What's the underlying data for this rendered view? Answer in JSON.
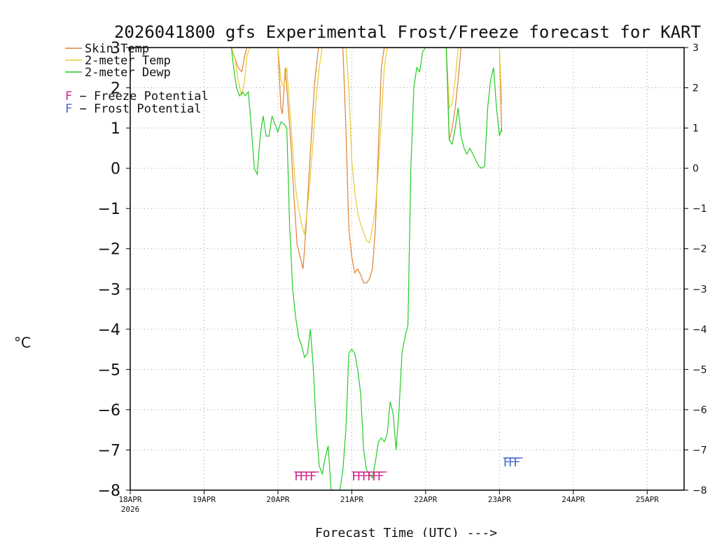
{
  "chart_data": {
    "type": "line",
    "title": "2026041800 gfs Experimental Frost/Freeze forecast for KART",
    "xlabel": "Forecast Time (UTC) --->",
    "ylabel": "°C",
    "ylim": [
      -8,
      3
    ],
    "xlim": [
      0,
      7.5
    ],
    "y_ticks": [
      -8,
      -7,
      -6,
      -5,
      -4,
      -3,
      -2,
      -1,
      0,
      1,
      2,
      3
    ],
    "y_tick_labels": [
      "−8",
      "−7",
      "−6",
      "−5",
      "−4",
      "−3",
      "−2",
      "−1",
      "0",
      "1",
      "2",
      "3"
    ],
    "x_ticks": [
      0,
      1,
      2,
      3,
      4,
      5,
      6,
      7
    ],
    "x_tick_labels": [
      "18APR",
      "19APR",
      "20APR",
      "21APR",
      "22APR",
      "23APR",
      "24APR",
      "25APR"
    ],
    "x_sub_label": "2026",
    "grid": true,
    "legend": [
      {
        "name": "Skin Temp",
        "color": "#e08030"
      },
      {
        "name": "2-meter Temp",
        "color": "#e6cc30"
      },
      {
        "name": "2-meter Dewp",
        "color": "#22cc22"
      }
    ],
    "legend_markers": [
      {
        "symbol": "F",
        "text": " − Freeze Potential",
        "color": "#cc2288"
      },
      {
        "symbol": "F",
        "text": " − Frost Potential",
        "color": "#4466cc"
      }
    ],
    "series": [
      {
        "name": "Skin Temp",
        "color": "#e08030",
        "x": [
          1.37,
          1.46,
          1.51,
          1.55,
          1.58,
          1.62,
          1.66,
          1.7,
          1.74,
          1.78,
          1.82,
          1.86,
          1.9,
          1.95,
          2.0,
          2.04,
          2.06,
          2.1,
          2.14,
          2.18,
          2.22,
          2.26,
          2.3,
          2.34,
          2.38,
          2.42,
          2.46,
          2.5,
          2.55,
          2.6,
          2.64,
          2.66,
          2.68,
          2.88,
          2.92,
          2.96,
          3.0,
          3.04,
          3.08,
          3.12,
          3.16,
          3.2,
          3.24,
          3.28,
          3.32,
          3.36,
          3.4,
          3.44,
          3.48,
          3.52,
          3.56,
          3.6,
          3.64,
          3.68,
          3.72,
          4.24,
          4.28,
          4.32,
          4.36,
          4.4,
          4.44,
          4.48,
          4.52,
          4.56,
          4.6,
          4.64,
          4.68,
          4.72,
          4.76,
          4.8,
          4.84,
          4.88,
          4.92,
          4.96,
          5.0,
          5.03
        ],
        "y": [
          3.0,
          2.5,
          2.4,
          2.8,
          3.0,
          3.0,
          3.0,
          3.0,
          3.0,
          3.0,
          3.0,
          3.0,
          3.0,
          3.0,
          3.0,
          1.5,
          1.35,
          2.5,
          1.5,
          0.5,
          -0.8,
          -1.9,
          -2.2,
          -2.5,
          -1.5,
          -0.2,
          1.0,
          2.2,
          3.0,
          3.0,
          3.0,
          3.0,
          3.0,
          3.0,
          1.0,
          -1.5,
          -2.2,
          -2.6,
          -2.5,
          -2.65,
          -2.85,
          -2.85,
          -2.75,
          -2.5,
          -1.5,
          0.5,
          2.5,
          3.0,
          3.0,
          3.0,
          3.0,
          3.0,
          3.0,
          3.0,
          3.0,
          3.0,
          3.0,
          0.7,
          1.0,
          1.5,
          2.2,
          3.0,
          3.0,
          3.0,
          3.0,
          3.0,
          3.0,
          3.0,
          3.0,
          3.0,
          3.0,
          3.0,
          3.0,
          3.0,
          3.0,
          0.9
        ]
      },
      {
        "name": "2-meter Temp",
        "color": "#e6cc30",
        "x": [
          1.37,
          1.42,
          1.46,
          1.51,
          1.55,
          1.58,
          1.62,
          1.66,
          1.7,
          1.74,
          1.78,
          1.82,
          1.86,
          1.9,
          1.95,
          2.0,
          2.04,
          2.08,
          2.12,
          2.16,
          2.2,
          2.24,
          2.28,
          2.32,
          2.36,
          2.4,
          2.44,
          2.48,
          2.52,
          2.56,
          2.6,
          2.66,
          2.92,
          2.96,
          3.0,
          3.04,
          3.08,
          3.12,
          3.16,
          3.2,
          3.24,
          3.28,
          3.32,
          3.36,
          3.4,
          3.44,
          3.48,
          3.52,
          3.6,
          3.64,
          3.68,
          3.72,
          4.24,
          4.28,
          4.32,
          4.36,
          4.4,
          4.44,
          4.48,
          4.52,
          4.56,
          4.6,
          4.64,
          4.68,
          4.72,
          4.76,
          4.8,
          4.84,
          4.88,
          4.92,
          4.96,
          5.0,
          5.03
        ],
        "y": [
          3.0,
          2.7,
          2.2,
          1.8,
          2.2,
          2.8,
          3.0,
          3.0,
          3.0,
          3.0,
          3.0,
          3.0,
          3.0,
          3.0,
          3.0,
          3.0,
          2.2,
          2.0,
          2.5,
          1.5,
          0.5,
          -0.5,
          -1.0,
          -1.4,
          -1.65,
          -1.0,
          -0.2,
          0.8,
          1.8,
          2.5,
          3.0,
          3.0,
          3.0,
          2.0,
          0.2,
          -0.6,
          -1.1,
          -1.4,
          -1.6,
          -1.8,
          -1.85,
          -1.5,
          -1.0,
          0.0,
          1.2,
          2.5,
          3.0,
          3.0,
          3.0,
          3.0,
          3.0,
          3.0,
          3.0,
          3.0,
          1.5,
          1.6,
          2.2,
          3.0,
          3.0,
          3.0,
          3.0,
          3.0,
          3.0,
          3.0,
          3.0,
          3.0,
          3.0,
          3.0,
          3.0,
          3.0,
          3.0,
          3.0,
          1.6
        ]
      },
      {
        "name": "2-meter Dewp",
        "color": "#22cc22",
        "x": [
          1.37,
          1.4,
          1.44,
          1.48,
          1.52,
          1.56,
          1.6,
          1.64,
          1.68,
          1.72,
          1.76,
          1.8,
          1.84,
          1.88,
          1.92,
          1.96,
          2.0,
          2.04,
          2.08,
          2.12,
          2.16,
          2.2,
          2.24,
          2.28,
          2.32,
          2.36,
          2.4,
          2.44,
          2.48,
          2.52,
          2.56,
          2.6,
          2.64,
          2.68,
          2.72,
          2.76,
          2.8,
          2.84,
          2.88,
          2.92,
          2.96,
          3.0,
          3.04,
          3.08,
          3.12,
          3.16,
          3.2,
          3.24,
          3.28,
          3.32,
          3.36,
          3.4,
          3.44,
          3.48,
          3.52,
          3.56,
          3.6,
          3.64,
          3.68,
          3.72,
          3.76,
          3.8,
          3.84,
          3.88,
          3.92,
          3.96,
          4.0,
          4.04,
          4.24,
          4.28,
          4.32,
          4.36,
          4.4,
          4.44,
          4.48,
          4.52,
          4.56,
          4.6,
          4.64,
          4.68,
          4.72,
          4.76,
          4.8,
          4.84,
          4.88,
          4.92,
          4.96,
          5.0,
          5.03
        ],
        "y": [
          3.0,
          2.5,
          2.0,
          1.8,
          1.9,
          1.8,
          1.9,
          1.0,
          0.0,
          -0.15,
          0.8,
          1.3,
          0.8,
          0.8,
          1.3,
          1.1,
          0.9,
          1.15,
          1.1,
          1.0,
          -1.5,
          -3.0,
          -3.7,
          -4.2,
          -4.4,
          -4.7,
          -4.6,
          -4.0,
          -5.0,
          -6.5,
          -7.4,
          -7.6,
          -7.2,
          -6.9,
          -8.0,
          -8.0,
          -8.0,
          -8.0,
          -7.5,
          -6.5,
          -4.6,
          -4.5,
          -4.6,
          -5.0,
          -5.6,
          -7.0,
          -7.5,
          -7.6,
          -7.7,
          -7.3,
          -6.8,
          -6.7,
          -6.8,
          -6.6,
          -5.8,
          -6.1,
          -7.0,
          -6.0,
          -4.6,
          -4.2,
          -3.9,
          0.0,
          2.0,
          2.5,
          2.4,
          2.9,
          3.0,
          3.0,
          3.0,
          3.0,
          0.7,
          0.6,
          1.0,
          1.5,
          0.8,
          0.5,
          0.35,
          0.5,
          0.35,
          0.2,
          0.05,
          0.0,
          0.05,
          1.5,
          2.2,
          2.5,
          1.5,
          0.8,
          1.0
        ]
      }
    ],
    "potential_markers": [
      {
        "type": "Freeze Potential",
        "label": "FFFF",
        "color": "#cc2288",
        "x": 2.22,
        "y": -7.6
      },
      {
        "type": "Freeze Potential",
        "label": "FFFFFF",
        "color": "#cc2288",
        "x": 3.0,
        "y": -7.6
      },
      {
        "type": "Frost Potential",
        "label": "FFF",
        "color": "#4466cc",
        "x": 5.05,
        "y": -7.25
      }
    ]
  }
}
